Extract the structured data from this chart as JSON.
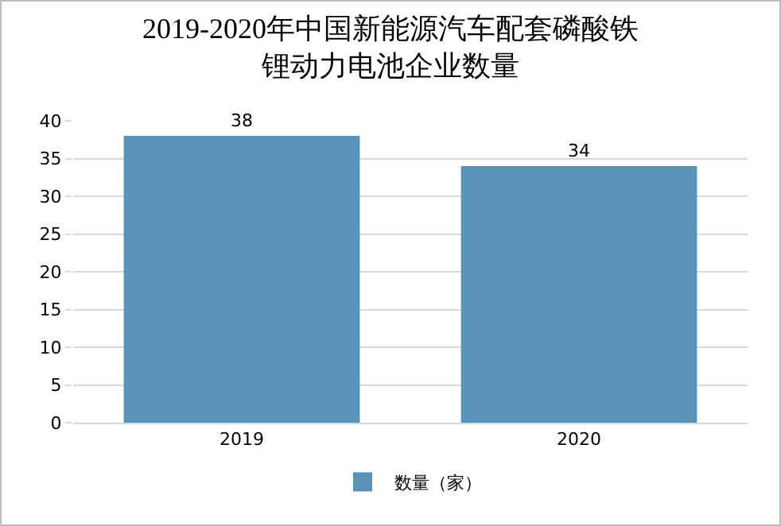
{
  "chart_data": {
    "type": "bar",
    "title": "2019-2020年中国新能源汽车配套磷酸铁锂动力电池企业数量",
    "categories": [
      "2019",
      "2020"
    ],
    "series": [
      {
        "name": "数量（家）",
        "color": "#5b93b8",
        "values": [
          38,
          34
        ]
      }
    ],
    "ylim": [
      0,
      40
    ],
    "yticks": [
      0,
      5,
      10,
      15,
      20,
      25,
      30,
      35,
      40
    ],
    "grid": "y",
    "legend": "bottom",
    "data_labels": true
  }
}
